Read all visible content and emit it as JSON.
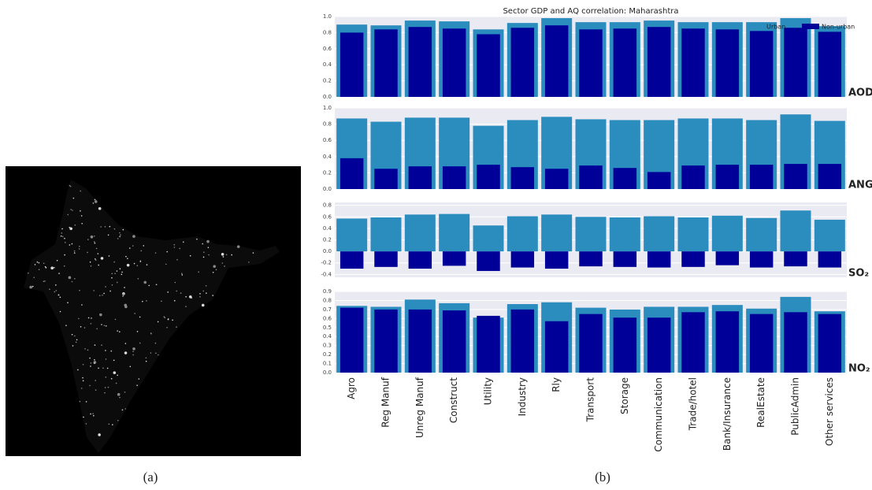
{
  "figure": {
    "captions": [
      "(a)",
      "(b)"
    ]
  },
  "chart_data": [
    {
      "type": "bar",
      "title": "Sector GDP and AQ correlation: Maharashtra",
      "panel_label": "AOD",
      "legend": "upper right",
      "grid": true,
      "ylim": [
        0,
        1
      ],
      "yticks": [
        {
          "value": 0,
          "label": "0.0"
        },
        0.2,
        0.4,
        0.6,
        0.8,
        {
          "value": 1,
          "label": "1.0"
        }
      ],
      "series": [
        {
          "name": "Urban",
          "color": "#2b8cbe",
          "values": [
            0.9,
            0.89,
            0.95,
            0.94,
            0.84,
            0.92,
            0.98,
            0.93,
            0.93,
            0.95,
            0.93,
            0.93,
            0.93,
            0.98,
            0.88
          ]
        },
        {
          "name": "Non-urban",
          "color": "#000099",
          "values": [
            0.8,
            0.84,
            0.87,
            0.85,
            0.78,
            0.86,
            0.89,
            0.84,
            0.85,
            0.87,
            0.85,
            0.84,
            0.82,
            0.86,
            0.81
          ]
        }
      ]
    },
    {
      "type": "bar",
      "panel_label": "ANG",
      "grid": true,
      "ylim": [
        0,
        1
      ],
      "yticks": [
        {
          "value": 0,
          "label": "0.0"
        },
        0.2,
        0.4,
        0.6,
        0.8,
        {
          "value": 1,
          "label": "1.0"
        }
      ],
      "series": [
        {
          "color": "#2b8cbe",
          "values": [
            0.87,
            0.83,
            0.88,
            0.88,
            0.78,
            0.85,
            0.89,
            0.86,
            0.85,
            0.85,
            0.87,
            0.87,
            0.85,
            0.92,
            0.84
          ]
        },
        {
          "color": "#000099",
          "values": [
            0.38,
            0.25,
            0.28,
            0.28,
            0.3,
            0.27,
            0.25,
            0.29,
            0.26,
            0.21,
            0.29,
            0.3,
            0.3,
            0.31,
            0.31
          ]
        }
      ]
    },
    {
      "type": "bar",
      "panel_label": "SO₂",
      "grid": true,
      "ylim": [
        -0.45,
        0.85
      ],
      "yticks": [
        -0.4,
        -0.2,
        {
          "value": 0,
          "label": "0.0"
        },
        0.2,
        0.4,
        0.6,
        0.8
      ],
      "series": [
        {
          "color": "#2b8cbe",
          "values": [
            0.57,
            0.59,
            0.64,
            0.65,
            0.45,
            0.61,
            0.64,
            0.6,
            0.59,
            0.61,
            0.59,
            0.62,
            0.58,
            0.71,
            0.55
          ]
        },
        {
          "color": "#000099",
          "values": [
            -0.3,
            -0.27,
            -0.3,
            -0.25,
            -0.34,
            -0.28,
            -0.3,
            -0.26,
            -0.27,
            -0.28,
            -0.27,
            -0.24,
            -0.28,
            -0.26,
            -0.28
          ]
        }
      ]
    },
    {
      "type": "bar",
      "panel_label": "NO₂",
      "grid": true,
      "categories": [
        "Agro",
        "Reg Manuf",
        "Unreg Manuf",
        "Construct",
        "Utility",
        "Industry",
        "Rly",
        "Transport",
        "Storage",
        "Communication",
        "Trade/hotel",
        "Bank/Insurance",
        "RealEstate",
        "PublicAdmin",
        "Other services"
      ],
      "ylim": [
        0,
        0.9
      ],
      "yticks": [
        {
          "value": 0,
          "label": "0.0"
        },
        0.1,
        0.2,
        0.3,
        0.4,
        0.5,
        0.6,
        0.7,
        0.8,
        0.9
      ],
      "series": [
        {
          "color": "#2b8cbe",
          "values": [
            0.74,
            0.73,
            0.81,
            0.77,
            0.61,
            0.76,
            0.78,
            0.72,
            0.7,
            0.73,
            0.73,
            0.75,
            0.71,
            0.84,
            0.68
          ]
        },
        {
          "color": "#000099",
          "values": [
            0.72,
            0.7,
            0.7,
            0.69,
            0.63,
            0.7,
            0.57,
            0.65,
            0.61,
            0.61,
            0.67,
            0.68,
            0.65,
            0.67,
            0.65
          ]
        }
      ]
    }
  ]
}
